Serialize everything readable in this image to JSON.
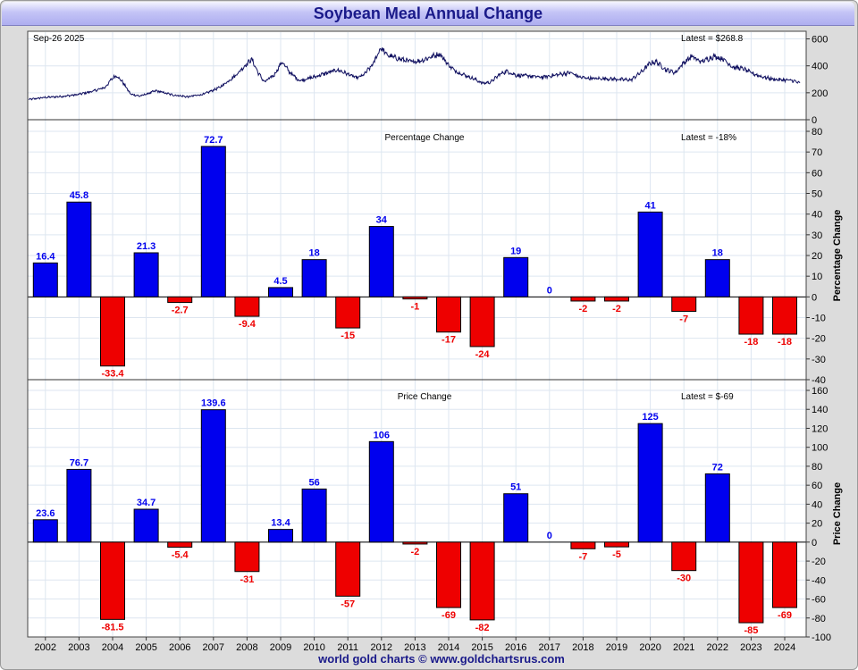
{
  "header": {
    "title": "Soybean Meal Annual Change"
  },
  "footer": {
    "credit": "world gold charts © www.goldchartsrus.com"
  },
  "chart_data": [
    {
      "type": "line",
      "panel": "price",
      "date_label": "Sep-26  2025",
      "latest_label": "Latest = $268.8",
      "ylim": [
        0,
        650
      ],
      "yticks": [
        0,
        200,
        400,
        600
      ],
      "x_start": 2001.5,
      "x_end": 2025.7,
      "anchors": [
        [
          2001.5,
          150
        ],
        [
          2002.0,
          165
        ],
        [
          2002.5,
          172
        ],
        [
          2003.0,
          185
        ],
        [
          2003.5,
          210
        ],
        [
          2003.9,
          240
        ],
        [
          2004.1,
          300
        ],
        [
          2004.25,
          330
        ],
        [
          2004.45,
          280
        ],
        [
          2004.7,
          190
        ],
        [
          2005.0,
          175
        ],
        [
          2005.5,
          215
        ],
        [
          2006.0,
          185
        ],
        [
          2006.5,
          170
        ],
        [
          2007.0,
          190
        ],
        [
          2007.5,
          240
        ],
        [
          2008.0,
          330
        ],
        [
          2008.2,
          380
        ],
        [
          2008.5,
          450
        ],
        [
          2008.7,
          350
        ],
        [
          2008.9,
          280
        ],
        [
          2009.2,
          330
        ],
        [
          2009.45,
          430
        ],
        [
          2009.7,
          350
        ],
        [
          2010.0,
          290
        ],
        [
          2010.5,
          320
        ],
        [
          2010.9,
          350
        ],
        [
          2011.2,
          370
        ],
        [
          2011.5,
          340
        ],
        [
          2011.8,
          310
        ],
        [
          2012.0,
          330
        ],
        [
          2012.3,
          410
        ],
        [
          2012.55,
          535
        ],
        [
          2012.75,
          480
        ],
        [
          2013.0,
          460
        ],
        [
          2013.5,
          430
        ],
        [
          2013.85,
          440
        ],
        [
          2014.0,
          455
        ],
        [
          2014.4,
          490
        ],
        [
          2014.7,
          400
        ],
        [
          2014.9,
          360
        ],
        [
          2015.2,
          330
        ],
        [
          2015.5,
          300
        ],
        [
          2015.75,
          270
        ],
        [
          2016.0,
          280
        ],
        [
          2016.3,
          340
        ],
        [
          2016.5,
          360
        ],
        [
          2016.8,
          330
        ],
        [
          2017.2,
          325
        ],
        [
          2017.6,
          315
        ],
        [
          2018.0,
          330
        ],
        [
          2018.5,
          350
        ],
        [
          2018.8,
          315
        ],
        [
          2019.2,
          305
        ],
        [
          2019.6,
          305
        ],
        [
          2020.0,
          300
        ],
        [
          2020.4,
          295
        ],
        [
          2020.75,
          360
        ],
        [
          2021.0,
          420
        ],
        [
          2021.2,
          430
        ],
        [
          2021.5,
          370
        ],
        [
          2021.8,
          350
        ],
        [
          2022.0,
          410
        ],
        [
          2022.3,
          470
        ],
        [
          2022.6,
          430
        ],
        [
          2023.0,
          470
        ],
        [
          2023.3,
          450
        ],
        [
          2023.6,
          390
        ],
        [
          2023.9,
          380
        ],
        [
          2024.2,
          345
        ],
        [
          2024.5,
          320
        ],
        [
          2024.85,
          300
        ],
        [
          2025.2,
          295
        ],
        [
          2025.5,
          290
        ],
        [
          2025.7,
          268.8
        ]
      ]
    },
    {
      "type": "bar",
      "panel": "percentage",
      "title": "Percentage Change",
      "latest_label": "Latest = -18%",
      "ylabel": "Percentage Change",
      "ylim": [
        -40,
        80
      ],
      "yticks": [
        -40,
        -30,
        -20,
        -10,
        0,
        10,
        20,
        30,
        40,
        50,
        60,
        70,
        80
      ],
      "categories": [
        "2002",
        "2003",
        "2004",
        "2005",
        "2006",
        "2007",
        "2008",
        "2009",
        "2010",
        "2011",
        "2012",
        "2013",
        "2014",
        "2015",
        "2016",
        "2017",
        "2018",
        "2019",
        "2020",
        "2021",
        "2022",
        "2023",
        "2024"
      ],
      "values": [
        16.4,
        45.8,
        -33.4,
        21.3,
        -2.7,
        72.7,
        -9.4,
        4.5,
        18,
        -15,
        34,
        -1,
        -17,
        -24,
        19,
        0,
        -2,
        -2,
        41,
        -7,
        18,
        -18,
        -18
      ],
      "labels": [
        "16.4",
        "45.8",
        "-33.4",
        "21.3",
        "-2.7",
        "72.7",
        "-9.4",
        "4.5",
        "18",
        "-15",
        "34",
        "-1",
        "-17",
        "-24",
        "19",
        "0",
        "-2",
        "-2",
        "41",
        "-7",
        "18",
        "-18",
        "-18"
      ]
    },
    {
      "type": "bar",
      "panel": "price_change",
      "title": "Price Change",
      "latest_label": "Latest = $-69",
      "ylabel": "Price Change",
      "ylim": [
        -100,
        160
      ],
      "yticks": [
        -100,
        -80,
        -60,
        -40,
        -20,
        0,
        20,
        40,
        60,
        80,
        100,
        120,
        140,
        160
      ],
      "categories": [
        "2002",
        "2003",
        "2004",
        "2005",
        "2006",
        "2007",
        "2008",
        "2009",
        "2010",
        "2011",
        "2012",
        "2013",
        "2014",
        "2015",
        "2016",
        "2017",
        "2018",
        "2019",
        "2020",
        "2021",
        "2022",
        "2023",
        "2024"
      ],
      "values": [
        23.6,
        76.7,
        -81.5,
        34.7,
        -5.4,
        139.6,
        -31,
        13.4,
        56,
        -57,
        106,
        -2,
        -69,
        -82,
        51,
        0,
        -7,
        -5,
        125,
        -30,
        72,
        -85,
        -69
      ],
      "labels": [
        "23.6",
        "76.7",
        "-81.5",
        "34.7",
        "-5.4",
        "139.6",
        "-31",
        "13.4",
        "56",
        "-57",
        "106",
        "-2",
        "-69",
        "-82",
        "51",
        "0",
        "-7",
        "-5",
        "125",
        "-30",
        "72",
        "-85",
        "-69"
      ]
    }
  ],
  "colors": {
    "positive": "#0000ee",
    "negative": "#ee0000",
    "line": "#101060",
    "grid": "#dde6f0",
    "title": "#1a1a8a"
  }
}
